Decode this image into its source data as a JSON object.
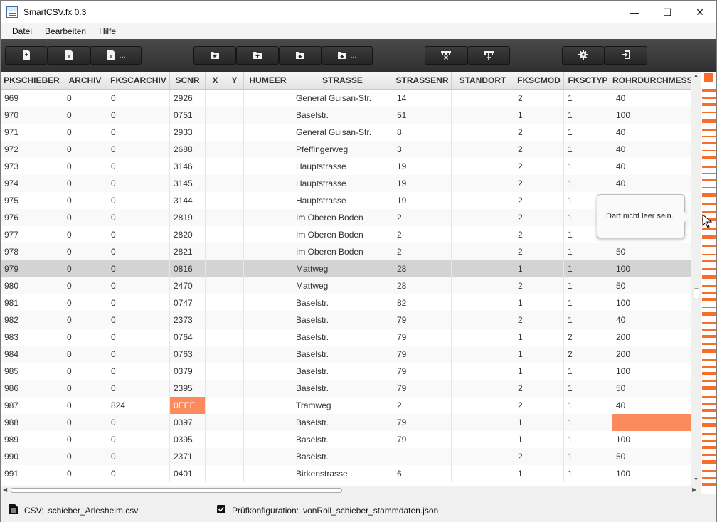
{
  "window": {
    "title": "SmartCSV.fx 0.3",
    "controls": {
      "minimize": "—",
      "maximize": "☐",
      "close": "✕"
    }
  },
  "menu": [
    "Datei",
    "Bearbeiten",
    "Hilfe"
  ],
  "toolbar": {
    "groups": [
      [
        {
          "icon": "file-new-icon",
          "more": ""
        },
        {
          "icon": "file-open-icon",
          "more": ""
        },
        {
          "icon": "file-save-as-icon",
          "more": "..."
        }
      ],
      [
        {
          "icon": "config-new-icon",
          "more": ""
        },
        {
          "icon": "config-upload-icon",
          "more": ""
        },
        {
          "icon": "config-download-icon",
          "more": ""
        },
        {
          "icon": "config-save-as-icon",
          "more": "..."
        }
      ],
      [
        {
          "icon": "delete-row-icon",
          "more": ""
        },
        {
          "icon": "add-row-icon",
          "more": ""
        }
      ],
      [
        {
          "icon": "gear-icon",
          "more": ""
        },
        {
          "icon": "exit-icon",
          "more": ""
        }
      ]
    ]
  },
  "table": {
    "columns": [
      "PKSCHIEBER",
      "ARCHIV",
      "FKSCARCHIV",
      "SCNR",
      "X",
      "Y",
      "HUMEER",
      "STRASSE",
      "STRASSENR",
      "STANDORT",
      "FKSCMOD",
      "FKSCTYP",
      "ROHRDURCHMESSER"
    ],
    "rows": [
      [
        "969",
        "0",
        "0",
        "2926",
        "",
        "",
        "",
        "General Guisan-Str.",
        "14",
        "",
        "2",
        "1",
        "40"
      ],
      [
        "970",
        "0",
        "0",
        "0751",
        "",
        "",
        "",
        "Baselstr.",
        "51",
        "",
        "1",
        "1",
        "100"
      ],
      [
        "971",
        "0",
        "0",
        "2933",
        "",
        "",
        "",
        "General Guisan-Str.",
        "8",
        "",
        "2",
        "1",
        "40"
      ],
      [
        "972",
        "0",
        "0",
        "2688",
        "",
        "",
        "",
        "Pfeffingerweg",
        "3",
        "",
        "2",
        "1",
        "40"
      ],
      [
        "973",
        "0",
        "0",
        "3146",
        "",
        "",
        "",
        "Hauptstrasse",
        "19",
        "",
        "2",
        "1",
        "40"
      ],
      [
        "974",
        "0",
        "0",
        "3145",
        "",
        "",
        "",
        "Hauptstrasse",
        "19",
        "",
        "2",
        "1",
        "40"
      ],
      [
        "975",
        "0",
        "0",
        "3144",
        "",
        "",
        "",
        "Hauptstrasse",
        "19",
        "",
        "2",
        "1",
        ""
      ],
      [
        "976",
        "0",
        "0",
        "2819",
        "",
        "",
        "",
        "Im Oberen Boden",
        "2",
        "",
        "2",
        "1",
        ""
      ],
      [
        "977",
        "0",
        "0",
        "2820",
        "",
        "",
        "",
        "Im Oberen Boden",
        "2",
        "",
        "2",
        "1",
        "50"
      ],
      [
        "978",
        "0",
        "0",
        "2821",
        "",
        "",
        "",
        "Im Oberen Boden",
        "2",
        "",
        "2",
        "1",
        "50"
      ],
      [
        "979",
        "0",
        "0",
        "0816",
        "",
        "",
        "",
        "Mattweg",
        "28",
        "",
        "1",
        "1",
        "100"
      ],
      [
        "980",
        "0",
        "0",
        "2470",
        "",
        "",
        "",
        "Mattweg",
        "28",
        "",
        "2",
        "1",
        "50"
      ],
      [
        "981",
        "0",
        "0",
        "0747",
        "",
        "",
        "",
        "Baselstr.",
        "82",
        "",
        "1",
        "1",
        "100"
      ],
      [
        "982",
        "0",
        "0",
        "2373",
        "",
        "",
        "",
        "Baselstr.",
        "79",
        "",
        "2",
        "1",
        "40"
      ],
      [
        "983",
        "0",
        "0",
        "0764",
        "",
        "",
        "",
        "Baselstr.",
        "79",
        "",
        "1",
        "2",
        "200"
      ],
      [
        "984",
        "0",
        "0",
        "0763",
        "",
        "",
        "",
        "Baselstr.",
        "79",
        "",
        "1",
        "2",
        "200"
      ],
      [
        "985",
        "0",
        "0",
        "0379",
        "",
        "",
        "",
        "Baselstr.",
        "79",
        "",
        "1",
        "1",
        "100"
      ],
      [
        "986",
        "0",
        "0",
        "2395",
        "",
        "",
        "",
        "Baselstr.",
        "79",
        "",
        "2",
        "1",
        "50"
      ],
      [
        "987",
        "0",
        "824",
        "0EEE",
        "",
        "",
        "",
        "Tramweg",
        "2",
        "",
        "2",
        "1",
        "40"
      ],
      [
        "988",
        "0",
        "0",
        "0397",
        "",
        "",
        "",
        "Baselstr.",
        "79",
        "",
        "1",
        "1",
        ""
      ],
      [
        "989",
        "0",
        "0",
        "0395",
        "",
        "",
        "",
        "Baselstr.",
        "79",
        "",
        "1",
        "1",
        "100"
      ],
      [
        "990",
        "0",
        "0",
        "2371",
        "",
        "",
        "",
        "Baselstr.",
        "",
        "",
        "2",
        "1",
        "50"
      ],
      [
        "991",
        "0",
        "0",
        "0401",
        "",
        "",
        "",
        "Birkenstrasse",
        "6",
        "",
        "1",
        "1",
        "100"
      ]
    ],
    "selected_row": "979",
    "error_cells": [
      {
        "row": "987",
        "column": "SCNR"
      },
      {
        "row": "988",
        "column": "ROHRDURCHMESSER"
      }
    ]
  },
  "tooltip": {
    "text": "Darf nicht leer sein."
  },
  "status": {
    "csv_label": "CSV:",
    "csv_file": "schieber_Arlesheim.csv",
    "config_label": "Prüfkonfiguration:",
    "config_file": "vonRoll_schieber_stammdaten.json"
  },
  "colors": {
    "error": "#fb8a5c",
    "error_strip": "#f86d2a",
    "toolbar": "#3a3a3a",
    "selected_row": "#d3d3d3"
  }
}
